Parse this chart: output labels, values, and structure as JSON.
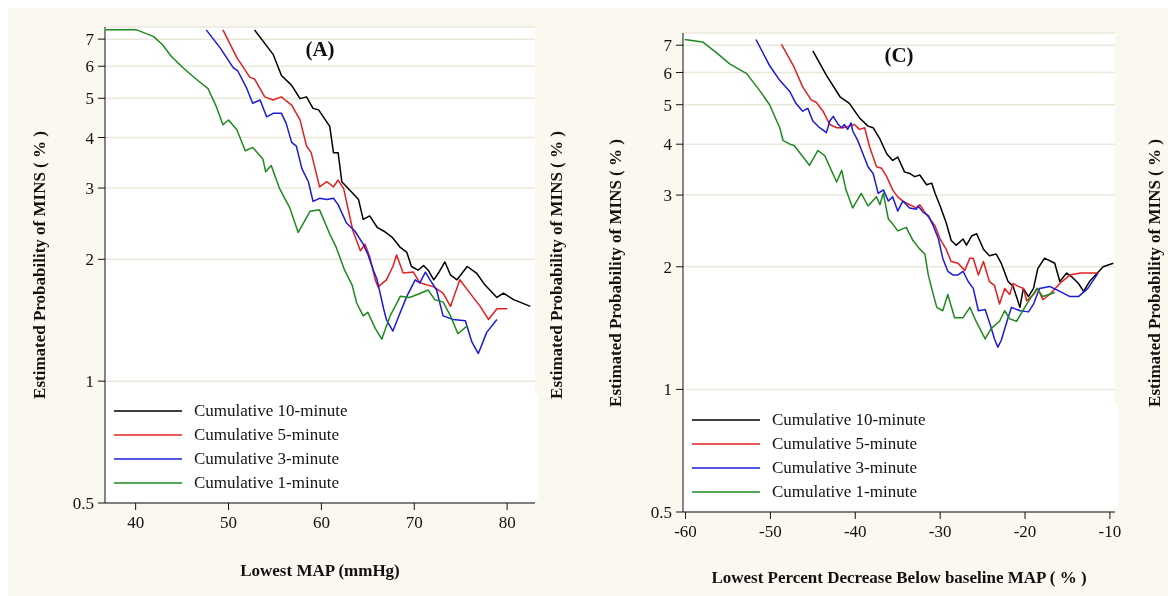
{
  "chart_data": [
    {
      "type": "line",
      "title": "(A)",
      "xlabel": "Lowest MAP (mmHg)",
      "ylabel": "Estimated Probability of MINS ( % )",
      "annotations": [
        "Estimated Probability of MINS ( % )"
      ],
      "xlim": [
        36.7,
        83
      ],
      "xticks": [
        40,
        50,
        60,
        70,
        80
      ],
      "ylim": [
        0.5,
        7.5
      ],
      "yticks": [
        0.5,
        1,
        2,
        3,
        4,
        5,
        6,
        7
      ],
      "log": "y",
      "grid": "y",
      "legend": "bottom left",
      "line_style": "solid",
      "series": [
        {
          "name": "Cumulative 10-minute",
          "color": "#000000",
          "x": [
            52.8,
            54.8,
            55.7,
            56.8,
            57.7,
            58.4,
            59.1,
            59.7,
            60.9,
            61.3,
            61.8,
            62.2,
            63.4,
            64.0,
            64.5,
            65.2,
            66.0,
            66.7,
            67.6,
            68.5,
            69.2,
            69.7,
            70.4,
            71.0,
            71.5,
            72.1,
            72.6,
            73.3,
            73.9,
            74.6,
            75.7,
            76.7,
            77.6,
            78.9,
            79.6,
            80.7,
            82.5
          ],
          "values": [
            7.38,
            6.42,
            5.69,
            5.38,
            4.99,
            5.04,
            4.72,
            4.68,
            4.26,
            3.67,
            3.67,
            3.11,
            2.91,
            2.81,
            2.51,
            2.56,
            2.4,
            2.35,
            2.27,
            2.14,
            2.08,
            1.92,
            1.88,
            1.93,
            1.88,
            1.78,
            1.85,
            1.97,
            1.83,
            1.78,
            1.92,
            1.85,
            1.73,
            1.61,
            1.65,
            1.59,
            1.53
          ]
        },
        {
          "name": "Cumulative 5-minute",
          "color": "#e3201f",
          "x": [
            49.4,
            50.9,
            52.3,
            52.8,
            53.9,
            54.8,
            55.7,
            56.1,
            56.8,
            57.7,
            58.4,
            58.9,
            59.8,
            60.6,
            61.3,
            61.8,
            62.4,
            62.9,
            63.4,
            64.2,
            64.7,
            65.2,
            65.8,
            66.1,
            67.0,
            67.7,
            68.1,
            68.8,
            69.9,
            70.6,
            72.1,
            73.1,
            73.9,
            74.9,
            76.0,
            77.1,
            78.0,
            78.9,
            80.0
          ],
          "values": [
            7.38,
            6.3,
            5.63,
            5.58,
            5.04,
            4.95,
            5.04,
            4.95,
            4.81,
            4.42,
            3.81,
            3.67,
            3.02,
            3.11,
            3.02,
            3.14,
            2.99,
            2.65,
            2.35,
            2.1,
            2.18,
            2.03,
            1.78,
            1.71,
            1.78,
            1.92,
            2.05,
            1.85,
            1.86,
            1.75,
            1.71,
            1.65,
            1.53,
            1.78,
            1.65,
            1.53,
            1.42,
            1.51,
            1.51
          ]
        },
        {
          "name": "Cumulative 3-minute",
          "color": "#1a1adb",
          "x": [
            47.6,
            49.1,
            50.5,
            51.0,
            51.9,
            52.6,
            53.4,
            54.1,
            54.8,
            55.7,
            56.2,
            56.8,
            57.3,
            57.9,
            58.6,
            59.1,
            59.8,
            60.6,
            61.3,
            61.8,
            62.7,
            63.6,
            64.5,
            65.0,
            65.6,
            66.0,
            66.7,
            67.0,
            67.7,
            68.5,
            69.2,
            70.1,
            70.6,
            71.2,
            71.7,
            72.4,
            73.1,
            74.2,
            75.5,
            76.2,
            76.9,
            77.8,
            78.9
          ],
          "values": [
            7.38,
            6.66,
            5.95,
            5.84,
            5.33,
            4.86,
            4.95,
            4.5,
            4.59,
            4.59,
            4.34,
            3.89,
            3.81,
            3.35,
            3.11,
            2.78,
            2.83,
            2.81,
            2.83,
            2.73,
            2.46,
            2.35,
            2.18,
            2.06,
            1.88,
            1.78,
            1.51,
            1.42,
            1.33,
            1.48,
            1.62,
            1.78,
            1.75,
            1.86,
            1.78,
            1.68,
            1.45,
            1.42,
            1.41,
            1.25,
            1.17,
            1.32,
            1.42
          ]
        },
        {
          "name": "Cumulative 1-minute",
          "color": "#1e8a1e",
          "x": [
            36.8,
            40.1,
            41.9,
            42.9,
            43.8,
            45.1,
            46.5,
            47.8,
            48.7,
            49.4,
            50.0,
            50.9,
            51.8,
            52.6,
            53.7,
            54.0,
            54.6,
            55.5,
            56.6,
            57.5,
            58.8,
            59.8,
            60.9,
            61.6,
            62.5,
            63.3,
            63.8,
            64.5,
            65.0,
            65.8,
            66.5,
            67.4,
            68.5,
            69.5,
            70.4,
            71.5,
            72.2,
            73.1,
            73.9,
            74.7,
            75.7
          ],
          "values": [
            7.38,
            7.38,
            7.11,
            6.78,
            6.36,
            5.95,
            5.58,
            5.28,
            4.76,
            4.3,
            4.42,
            4.18,
            3.71,
            3.78,
            3.54,
            3.29,
            3.41,
            2.99,
            2.68,
            2.33,
            2.63,
            2.65,
            2.31,
            2.14,
            1.88,
            1.73,
            1.56,
            1.45,
            1.48,
            1.35,
            1.27,
            1.45,
            1.62,
            1.61,
            1.64,
            1.68,
            1.59,
            1.57,
            1.45,
            1.31,
            1.37
          ]
        }
      ]
    },
    {
      "type": "line",
      "title": "(C)",
      "xlabel": "Lowest Percent Decrease Below baseline MAP ( % )",
      "ylabel": "Estimated Probability of MINS ( % )",
      "annotations": [
        "Estimated Probability of MINS ( % )"
      ],
      "xlim": [
        -60.3,
        -9.4
      ],
      "xticks": [
        -60,
        -50,
        -40,
        -30,
        -20,
        -10
      ],
      "ylim": [
        0.5,
        7.5
      ],
      "yticks": [
        0.5,
        1,
        2,
        3,
        4,
        5,
        6,
        7
      ],
      "log": "y",
      "grid": "y",
      "legend": "bottom left",
      "line_style": "solid",
      "series": [
        {
          "name": "Cumulative 10-minute",
          "color": "#000000",
          "x": [
            -45.0,
            -43.4,
            -41.8,
            -40.7,
            -39.5,
            -38.5,
            -37.9,
            -37.1,
            -36.3,
            -35.6,
            -35.0,
            -34.2,
            -33.6,
            -33.0,
            -32.4,
            -31.6,
            -31.0,
            -30.6,
            -30.0,
            -29.3,
            -28.7,
            -28.1,
            -27.3,
            -26.9,
            -26.3,
            -25.7,
            -24.9,
            -24.2,
            -23.4,
            -22.8,
            -22.0,
            -21.4,
            -20.6,
            -20.2,
            -19.6,
            -19.0,
            -18.5,
            -17.7,
            -16.5,
            -15.9,
            -15.1,
            -14.5,
            -13.7,
            -13.1,
            -12.4,
            -10.8,
            -9.6
          ],
          "values": [
            6.78,
            5.9,
            5.23,
            5.04,
            4.64,
            4.43,
            4.39,
            4.12,
            3.79,
            3.65,
            3.72,
            3.42,
            3.39,
            3.33,
            3.36,
            3.18,
            3.21,
            3.03,
            2.82,
            2.57,
            2.32,
            2.26,
            2.34,
            2.26,
            2.38,
            2.41,
            2.21,
            2.13,
            2.15,
            2.04,
            1.84,
            1.79,
            1.59,
            1.77,
            1.69,
            1.77,
            1.98,
            2.1,
            2.04,
            1.84,
            1.93,
            1.89,
            1.82,
            1.74,
            1.84,
            2.0,
            2.04
          ]
        },
        {
          "name": "Cumulative 5-minute",
          "color": "#e3201f",
          "x": [
            -48.7,
            -47.3,
            -46.2,
            -45.2,
            -44.6,
            -43.8,
            -43.0,
            -42.2,
            -41.4,
            -40.7,
            -40.1,
            -39.5,
            -38.9,
            -38.3,
            -37.5,
            -36.9,
            -36.3,
            -35.6,
            -35.0,
            -34.4,
            -33.6,
            -32.8,
            -32.4,
            -31.8,
            -31.2,
            -30.6,
            -30.0,
            -29.3,
            -28.7,
            -27.9,
            -27.1,
            -26.5,
            -26.1,
            -25.5,
            -24.9,
            -24.2,
            -23.6,
            -23.0,
            -22.4,
            -21.8,
            -21.4,
            -20.8,
            -20.2,
            -19.8,
            -19.0,
            -18.5,
            -17.9,
            -17.1,
            -15.9,
            -14.7,
            -13.5,
            -11.4
          ],
          "values": [
            7.03,
            6.24,
            5.53,
            5.14,
            5.07,
            4.82,
            4.47,
            4.39,
            4.39,
            4.43,
            4.47,
            4.35,
            4.39,
            3.93,
            3.52,
            3.49,
            3.33,
            3.09,
            2.97,
            2.9,
            2.84,
            2.79,
            2.84,
            2.72,
            2.62,
            2.52,
            2.34,
            2.21,
            2.06,
            2.04,
            1.96,
            2.1,
            2.1,
            1.91,
            2.06,
            1.84,
            1.8,
            1.62,
            1.77,
            1.71,
            1.82,
            1.79,
            1.77,
            1.65,
            1.71,
            1.77,
            1.66,
            1.71,
            1.82,
            1.91,
            1.93,
            1.93
          ]
        },
        {
          "name": "Cumulative 3-minute",
          "color": "#1a1adb",
          "x": [
            -51.7,
            -50.1,
            -48.9,
            -47.7,
            -47.0,
            -46.2,
            -45.6,
            -45.0,
            -44.2,
            -43.4,
            -43.0,
            -42.6,
            -42.0,
            -41.6,
            -41.3,
            -40.9,
            -40.5,
            -40.3,
            -39.7,
            -39.1,
            -38.5,
            -37.9,
            -37.3,
            -36.7,
            -36.1,
            -35.6,
            -35.0,
            -34.4,
            -33.6,
            -32.8,
            -32.6,
            -32.0,
            -31.4,
            -30.8,
            -30.2,
            -29.7,
            -29.1,
            -28.5,
            -27.9,
            -27.3,
            -26.7,
            -26.1,
            -25.5,
            -24.7,
            -24.0,
            -23.6,
            -23.2,
            -22.8,
            -22.0,
            -21.6,
            -20.6,
            -19.6,
            -19.0,
            -18.3,
            -17.1,
            -15.9,
            -14.7,
            -13.7,
            -12.6,
            -11.4
          ],
          "values": [
            7.23,
            6.24,
            5.74,
            5.38,
            5.04,
            4.82,
            4.9,
            4.56,
            4.39,
            4.27,
            4.56,
            4.68,
            4.47,
            4.39,
            4.47,
            4.35,
            4.51,
            4.31,
            4.08,
            3.79,
            3.52,
            3.39,
            3.03,
            3.09,
            2.9,
            2.97,
            2.74,
            2.9,
            2.79,
            2.77,
            2.82,
            2.72,
            2.67,
            2.52,
            2.34,
            2.1,
            1.95,
            1.91,
            1.91,
            1.95,
            1.84,
            1.77,
            1.56,
            1.57,
            1.42,
            1.33,
            1.27,
            1.32,
            1.5,
            1.59,
            1.56,
            1.55,
            1.62,
            1.77,
            1.79,
            1.74,
            1.69,
            1.69,
            1.77,
            1.93
          ]
        },
        {
          "name": "Cumulative 1-minute",
          "color": "#1e8a1e",
          "x": [
            -60.1,
            -58.0,
            -56.4,
            -54.8,
            -52.8,
            -51.3,
            -50.1,
            -48.9,
            -48.5,
            -47.7,
            -47.2,
            -45.4,
            -44.4,
            -43.6,
            -42.2,
            -41.6,
            -41.1,
            -40.3,
            -39.3,
            -38.5,
            -37.5,
            -37.1,
            -36.7,
            -36.1,
            -35.6,
            -35.0,
            -34.0,
            -33.2,
            -32.4,
            -31.8,
            -31.4,
            -31.0,
            -30.4,
            -29.7,
            -29.1,
            -28.3,
            -27.3,
            -26.5,
            -25.7,
            -24.7,
            -24.0,
            -23.0,
            -22.4,
            -21.8,
            -21.0,
            -19.8,
            -18.6,
            -17.9,
            -16.5
          ],
          "values": [
            7.23,
            7.13,
            6.72,
            6.3,
            5.96,
            5.43,
            5.0,
            4.39,
            4.08,
            4.0,
            3.97,
            3.55,
            3.86,
            3.75,
            3.23,
            3.45,
            3.09,
            2.79,
            3.03,
            2.82,
            2.97,
            2.84,
            3.03,
            2.62,
            2.55,
            2.45,
            2.5,
            2.32,
            2.21,
            2.15,
            1.91,
            1.77,
            1.59,
            1.56,
            1.71,
            1.5,
            1.5,
            1.59,
            1.46,
            1.33,
            1.41,
            1.47,
            1.56,
            1.49,
            1.47,
            1.62,
            1.77,
            1.69,
            1.73
          ]
        }
      ]
    }
  ]
}
